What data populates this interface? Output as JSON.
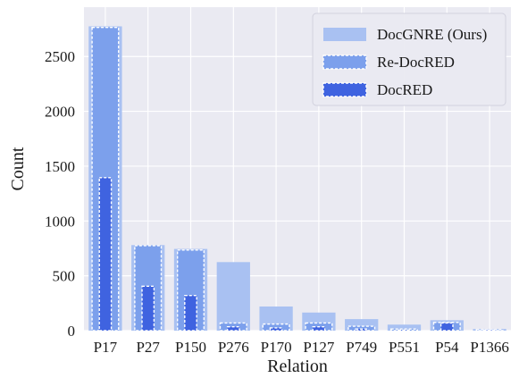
{
  "chart_data": {
    "type": "bar",
    "xlabel": "Relation",
    "ylabel": "Count",
    "categories": [
      "P17",
      "P27",
      "P150",
      "P276",
      "P170",
      "P127",
      "P749",
      "P551",
      "P54",
      "P1366"
    ],
    "ylim": [
      0,
      2950
    ],
    "yticks": [
      0,
      500,
      1000,
      1500,
      2000,
      2500
    ],
    "grid": true,
    "legend_position": "top-right",
    "series": [
      {
        "name": "DocGNRE (Ours)",
        "color": "#a9c1f2",
        "values": [
          2775,
          780,
          745,
          625,
          220,
          165,
          105,
          55,
          95,
          15
        ]
      },
      {
        "name": "Re-DocRED",
        "color": "#7ca0ec",
        "values": [
          2765,
          775,
          735,
          70,
          60,
          70,
          40,
          15,
          75,
          10
        ]
      },
      {
        "name": "DocRED",
        "color": "#3f63e0",
        "values": [
          1395,
          405,
          320,
          35,
          25,
          35,
          15,
          5,
          70,
          5
        ]
      }
    ]
  }
}
